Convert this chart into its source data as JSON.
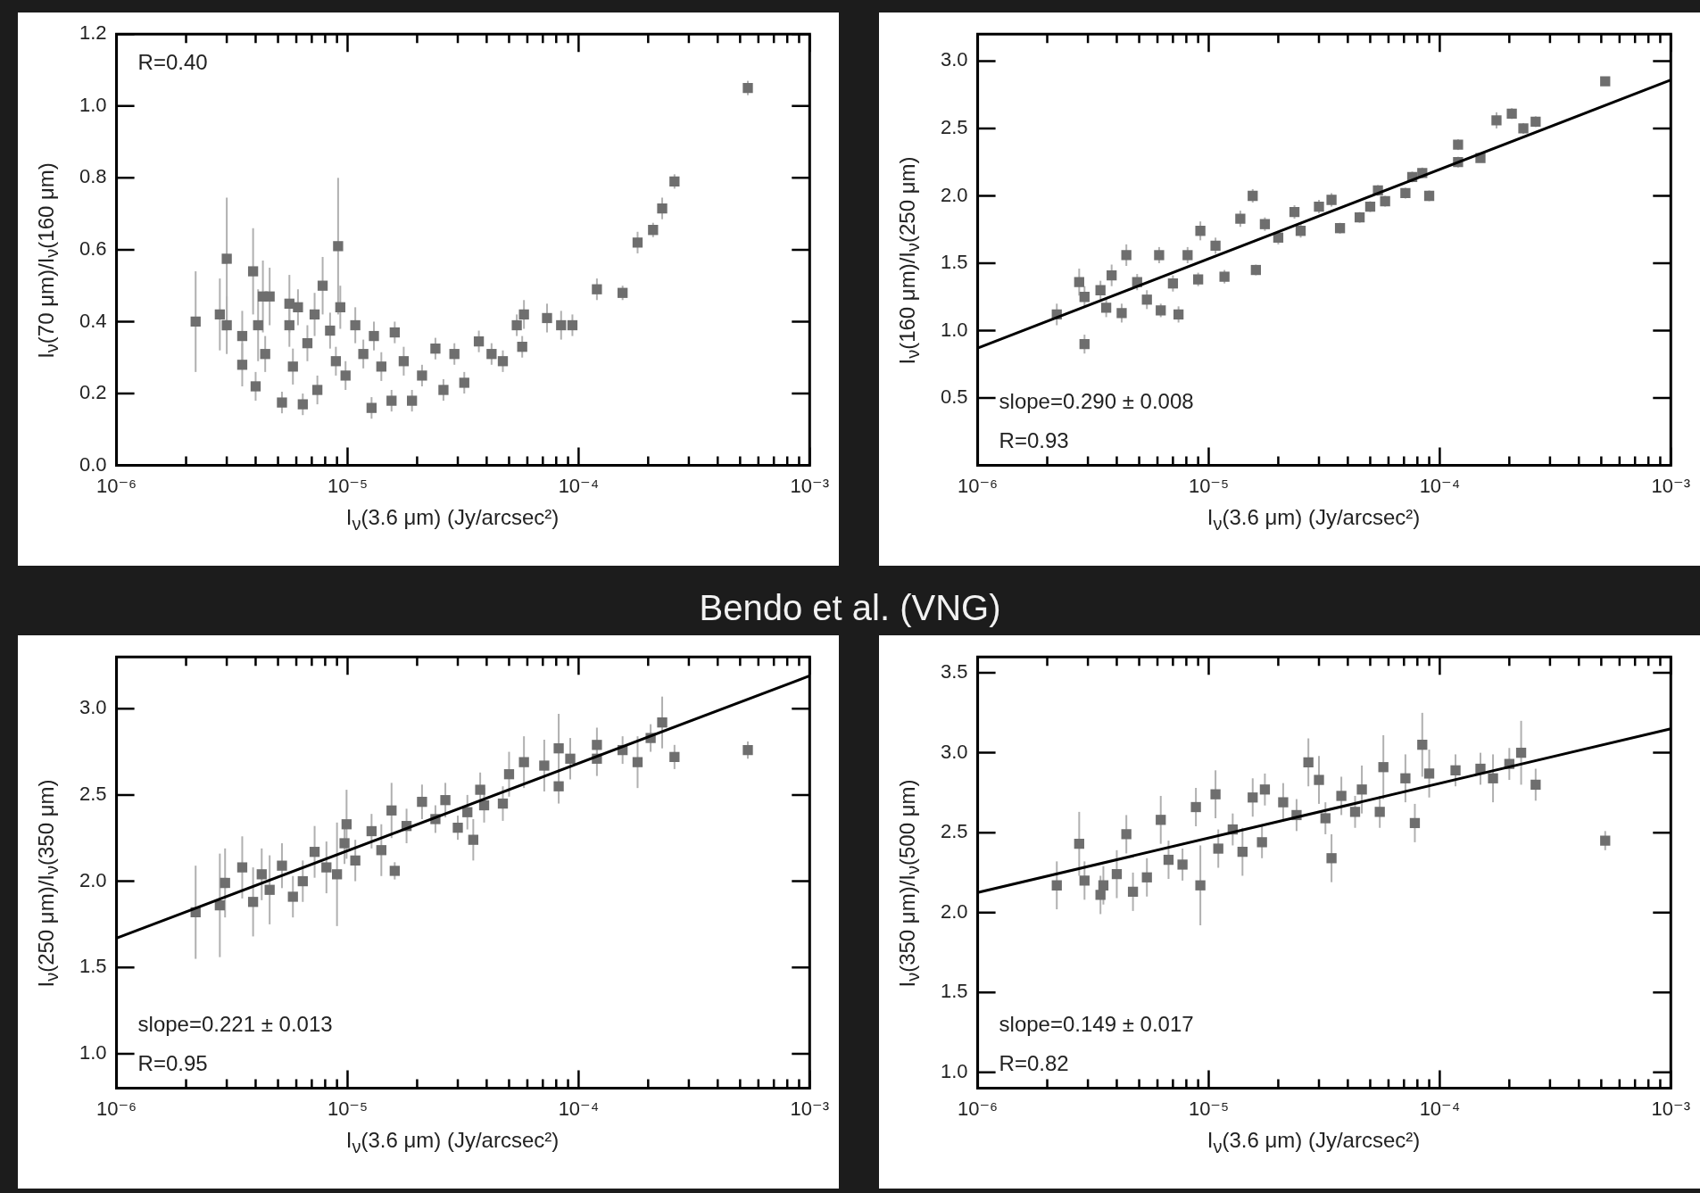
{
  "chart_data": [
    {
      "type": "scatter",
      "log": "x",
      "marker": "square",
      "xlim": [
        1e-06,
        0.001
      ],
      "ylim": [
        0,
        1.2
      ],
      "xlabel": "I$_{ν}$(3.6 μm) (Jy/arcsec²)",
      "ylabel": "I$_{ν}$(70 μm)/I$_{ν}$(160 μm)",
      "xticks": [
        {
          "value": 1e-06,
          "label": "10⁻⁶"
        },
        {
          "value": 2e-06,
          "label": null
        },
        {
          "value": 3e-06,
          "label": null
        },
        {
          "value": 4e-06,
          "label": null
        },
        {
          "value": 5e-06,
          "label": null
        },
        {
          "value": 6e-06,
          "label": null
        },
        {
          "value": 7e-06,
          "label": null
        },
        {
          "value": 8e-06,
          "label": null
        },
        {
          "value": 9e-06,
          "label": null
        },
        {
          "value": 1e-05,
          "label": "10⁻⁵"
        },
        {
          "value": 2e-05,
          "label": null
        },
        {
          "value": 3e-05,
          "label": null
        },
        {
          "value": 4e-05,
          "label": null
        },
        {
          "value": 5e-05,
          "label": null
        },
        {
          "value": 6e-05,
          "label": null
        },
        {
          "value": 7e-05,
          "label": null
        },
        {
          "value": 8e-05,
          "label": null
        },
        {
          "value": 9e-05,
          "label": null
        },
        {
          "value": 0.0001,
          "label": "10⁻⁴"
        },
        {
          "value": 0.0002,
          "label": null
        },
        {
          "value": 0.0003,
          "label": null
        },
        {
          "value": 0.0004,
          "label": null
        },
        {
          "value": 0.0005,
          "label": null
        },
        {
          "value": 0.0006,
          "label": null
        },
        {
          "value": 0.0007,
          "label": null
        },
        {
          "value": 0.0008,
          "label": null
        },
        {
          "value": 0.0009,
          "label": null
        },
        {
          "value": 0.001,
          "label": "10⁻³"
        }
      ],
      "yticks": [
        {
          "value": 0,
          "label": "0.0"
        },
        {
          "value": 0.2,
          "label": "0.2"
        },
        {
          "value": 0.4,
          "label": "0.4"
        },
        {
          "value": 0.6,
          "label": "0.6"
        },
        {
          "value": 0.8,
          "label": "0.8"
        },
        {
          "value": 1,
          "label": "1.0"
        },
        {
          "value": 1.2,
          "label": "1.2"
        }
      ],
      "annotations": [
        "R=0.40"
      ],
      "series": [
        {
          "type": "scatter",
          "color": "#6e6e6e",
          "x": [
            2.2e-06,
            2.8e-06,
            3e-06,
            3e-06,
            3.5e-06,
            3.5e-06,
            3.9e-06,
            4.1e-06,
            4.3e-06,
            4.6e-06,
            4e-06,
            4.4e-06,
            5.2e-06,
            5.6e-06,
            5.6e-06,
            5.8e-06,
            6.1e-06,
            6.4e-06,
            7.2e-06,
            6.7e-06,
            7.4e-06,
            7.8e-06,
            8.4e-06,
            9.1e-06,
            9.3e-06,
            8.9e-06,
            9.8e-06,
            1.08e-05,
            1.17e-05,
            1.27e-05,
            1.3e-05,
            1.4e-05,
            1.55e-05,
            1.6e-05,
            1.75e-05,
            1.9e-05,
            2.1e-05,
            2.4e-05,
            2.6e-05,
            2.9e-05,
            3.2e-05,
            3.7e-05,
            4.2e-05,
            4.7e-05,
            5.4e-05,
            5.8e-05,
            5.7e-05,
            7.3e-05,
            8.4e-05,
            9.4e-05,
            0.00012,
            0.000155,
            0.00018,
            0.00021,
            0.00023,
            0.00026,
            0.00054
          ],
          "values": [
            0.4,
            0.42,
            0.575,
            0.39,
            0.36,
            0.28,
            0.54,
            0.39,
            0.47,
            0.47,
            0.22,
            0.31,
            0.175,
            0.45,
            0.39,
            0.275,
            0.44,
            0.17,
            0.42,
            0.34,
            0.21,
            0.5,
            0.375,
            0.61,
            0.44,
            0.29,
            0.25,
            0.39,
            0.31,
            0.16,
            0.36,
            0.275,
            0.18,
            0.37,
            0.29,
            0.18,
            0.25,
            0.325,
            0.21,
            0.31,
            0.23,
            0.345,
            0.31,
            0.29,
            0.39,
            0.42,
            0.33,
            0.41,
            0.39,
            0.39,
            0.49,
            0.48,
            0.62,
            0.655,
            0.715,
            0.79,
            1.05
          ],
          "errors": [
            0.14,
            0.1,
            0.17,
            0.08,
            0.07,
            0.06,
            0.12,
            0.1,
            0.1,
            0.08,
            0.04,
            0.05,
            0.03,
            0.08,
            0.06,
            0.05,
            0.05,
            0.03,
            0.06,
            0.05,
            0.04,
            0.08,
            0.05,
            0.19,
            0.06,
            0.04,
            0.04,
            0.05,
            0.04,
            0.03,
            0.04,
            0.04,
            0.03,
            0.03,
            0.04,
            0.03,
            0.03,
            0.03,
            0.03,
            0.03,
            0.03,
            0.03,
            0.03,
            0.03,
            0.03,
            0.04,
            0.03,
            0.04,
            0.04,
            0.03,
            0.03,
            0.02,
            0.03,
            0.02,
            0.03,
            0.02,
            0.02
          ]
        }
      ]
    },
    {
      "type": "scatter",
      "log": "x",
      "marker": "square",
      "xlim": [
        1e-06,
        0.001
      ],
      "ylim": [
        0,
        3.2
      ],
      "xlabel": "I$_{ν}$(3.6 μm) (Jy/arcsec²)",
      "ylabel": "I$_{ν}$(160 μm)/I$_{ν}$(250 μm)",
      "xticks": [
        {
          "value": 1e-06,
          "label": "10⁻⁶"
        },
        {
          "value": 2e-06,
          "label": null
        },
        {
          "value": 3e-06,
          "label": null
        },
        {
          "value": 4e-06,
          "label": null
        },
        {
          "value": 5e-06,
          "label": null
        },
        {
          "value": 6e-06,
          "label": null
        },
        {
          "value": 7e-06,
          "label": null
        },
        {
          "value": 8e-06,
          "label": null
        },
        {
          "value": 9e-06,
          "label": null
        },
        {
          "value": 1e-05,
          "label": "10⁻⁵"
        },
        {
          "value": 2e-05,
          "label": null
        },
        {
          "value": 3e-05,
          "label": null
        },
        {
          "value": 4e-05,
          "label": null
        },
        {
          "value": 5e-05,
          "label": null
        },
        {
          "value": 6e-05,
          "label": null
        },
        {
          "value": 7e-05,
          "label": null
        },
        {
          "value": 8e-05,
          "label": null
        },
        {
          "value": 9e-05,
          "label": null
        },
        {
          "value": 0.0001,
          "label": "10⁻⁴"
        },
        {
          "value": 0.0002,
          "label": null
        },
        {
          "value": 0.0003,
          "label": null
        },
        {
          "value": 0.0004,
          "label": null
        },
        {
          "value": 0.0005,
          "label": null
        },
        {
          "value": 0.0006,
          "label": null
        },
        {
          "value": 0.0007,
          "label": null
        },
        {
          "value": 0.0008,
          "label": null
        },
        {
          "value": 0.0009,
          "label": null
        },
        {
          "value": 0.001,
          "label": "10⁻³"
        }
      ],
      "yticks": [
        {
          "value": 0.5,
          "label": "0.5"
        },
        {
          "value": 1,
          "label": "1.0"
        },
        {
          "value": 1.5,
          "label": "1.5"
        },
        {
          "value": 2,
          "label": "2.0"
        },
        {
          "value": 2.5,
          "label": "2.5"
        },
        {
          "value": 3,
          "label": "3.0"
        }
      ],
      "annotations": [
        "slope=0.290 ± 0.008",
        "R=0.93"
      ],
      "series": [
        {
          "type": "scatter",
          "color": "#6e6e6e",
          "x": [
            2.2e-06,
            2.75e-06,
            2.9e-06,
            2.9e-06,
            3.4e-06,
            3.6e-06,
            3.8e-06,
            4.2e-06,
            4.4e-06,
            4.9e-06,
            5.4e-06,
            6.1e-06,
            6.2e-06,
            7e-06,
            7.4e-06,
            8.1e-06,
            9.2e-06,
            9e-06,
            1.07e-05,
            1.17e-05,
            1.37e-05,
            1.55e-05,
            1.6e-05,
            1.75e-05,
            2e-05,
            2.35e-05,
            2.5e-05,
            3e-05,
            3.4e-05,
            3.7e-05,
            4.5e-05,
            5e-05,
            5.4e-05,
            5.8e-05,
            7.1e-05,
            7.6e-05,
            8.4e-05,
            9e-05,
            0.00012,
            0.00012,
            0.00015,
            0.000176,
            0.000205,
            0.00023,
            0.00026,
            0.00052
          ],
          "values": [
            1.12,
            1.36,
            0.9,
            1.25,
            1.3,
            1.17,
            1.41,
            1.13,
            1.56,
            1.36,
            1.23,
            1.56,
            1.15,
            1.35,
            1.12,
            1.56,
            1.74,
            1.38,
            1.63,
            1.4,
            1.83,
            2.0,
            1.45,
            1.79,
            1.69,
            1.88,
            1.74,
            1.92,
            1.97,
            1.76,
            1.84,
            1.92,
            2.04,
            1.96,
            2.02,
            2.14,
            2.17,
            2.0,
            2.38,
            2.25,
            2.28,
            2.56,
            2.61,
            2.5,
            2.55,
            2.85
          ],
          "errors": [
            0.08,
            0.1,
            0.07,
            0.08,
            0.07,
            0.07,
            0.08,
            0.07,
            0.08,
            0.06,
            0.07,
            0.06,
            0.05,
            0.06,
            0.06,
            0.06,
            0.07,
            0.05,
            0.06,
            0.05,
            0.06,
            0.05,
            0.04,
            0.05,
            0.05,
            0.05,
            0.05,
            0.05,
            0.05,
            0.04,
            0.04,
            0.04,
            0.04,
            0.04,
            0.04,
            0.04,
            0.04,
            0.04,
            0.04,
            0.04,
            0.03,
            0.06,
            0.04,
            0.04,
            0.04,
            0.03
          ]
        },
        {
          "type": "line",
          "marker": "none",
          "color": "#000000",
          "x": [
            1e-06,
            0.001
          ],
          "values": [
            0.87,
            2.86
          ]
        }
      ]
    },
    {
      "type": "other",
      "title": "Bendo et al. (VNG)"
    },
    {
      "type": "scatter",
      "log": "x",
      "marker": "square",
      "xlim": [
        1e-06,
        0.001
      ],
      "ylim": [
        0.8,
        3.3
      ],
      "xlabel": "I$_{ν}$(3.6 μm) (Jy/arcsec²)",
      "ylabel": "I$_{ν}$(250 μm)/I$_{ν}$(350 μm)",
      "xticks": [
        {
          "value": 1e-06,
          "label": "10⁻⁶"
        },
        {
          "value": 2e-06,
          "label": null
        },
        {
          "value": 3e-06,
          "label": null
        },
        {
          "value": 4e-06,
          "label": null
        },
        {
          "value": 5e-06,
          "label": null
        },
        {
          "value": 6e-06,
          "label": null
        },
        {
          "value": 7e-06,
          "label": null
        },
        {
          "value": 8e-06,
          "label": null
        },
        {
          "value": 9e-06,
          "label": null
        },
        {
          "value": 1e-05,
          "label": "10⁻⁵"
        },
        {
          "value": 2e-05,
          "label": null
        },
        {
          "value": 3e-05,
          "label": null
        },
        {
          "value": 4e-05,
          "label": null
        },
        {
          "value": 5e-05,
          "label": null
        },
        {
          "value": 6e-05,
          "label": null
        },
        {
          "value": 7e-05,
          "label": null
        },
        {
          "value": 8e-05,
          "label": null
        },
        {
          "value": 9e-05,
          "label": null
        },
        {
          "value": 0.0001,
          "label": "10⁻⁴"
        },
        {
          "value": 0.0002,
          "label": null
        },
        {
          "value": 0.0003,
          "label": null
        },
        {
          "value": 0.0004,
          "label": null
        },
        {
          "value": 0.0005,
          "label": null
        },
        {
          "value": 0.0006,
          "label": null
        },
        {
          "value": 0.0007,
          "label": null
        },
        {
          "value": 0.0008,
          "label": null
        },
        {
          "value": 0.0009,
          "label": null
        },
        {
          "value": 0.001,
          "label": "10⁻³"
        }
      ],
      "yticks": [
        {
          "value": 1,
          "label": "1.0"
        },
        {
          "value": 1.5,
          "label": "1.5"
        },
        {
          "value": 2,
          "label": "2.0"
        },
        {
          "value": 2.5,
          "label": "2.5"
        },
        {
          "value": 3,
          "label": "3.0"
        }
      ],
      "annotations": [
        "slope=0.221 ± 0.013",
        "R=0.95"
      ],
      "series": [
        {
          "type": "scatter",
          "color": "#6e6e6e",
          "x": [
            2.2e-06,
            2.8e-06,
            2.95e-06,
            3.5e-06,
            3.9e-06,
            4.25e-06,
            4.6e-06,
            5.2e-06,
            5.8e-06,
            6.4e-06,
            7.2e-06,
            8.1e-06,
            9e-06,
            9.9e-06,
            9.7e-06,
            1.08e-05,
            1.27e-05,
            1.4e-05,
            1.55e-05,
            1.6e-05,
            1.8e-05,
            2.1e-05,
            2.4e-05,
            2.65e-05,
            3e-05,
            3.5e-05,
            3.3e-05,
            3.9e-05,
            3.75e-05,
            4.7e-05,
            5e-05,
            5.8e-05,
            7.1e-05,
            8.2e-05,
            8.2e-05,
            9.2e-05,
            0.00012,
            0.00012,
            0.000155,
            0.00018,
            0.000205,
            0.00023,
            0.00026,
            0.00054
          ],
          "values": [
            1.82,
            1.86,
            1.99,
            2.08,
            1.88,
            2.04,
            1.95,
            2.09,
            1.91,
            2.0,
            2.17,
            2.08,
            2.04,
            2.33,
            2.22,
            2.12,
            2.29,
            2.18,
            2.41,
            2.06,
            2.32,
            2.46,
            2.36,
            2.47,
            2.31,
            2.24,
            2.4,
            2.44,
            2.53,
            2.45,
            2.62,
            2.69,
            2.67,
            2.77,
            2.55,
            2.71,
            2.79,
            2.71,
            2.76,
            2.69,
            2.83,
            2.92,
            2.72,
            2.76
          ],
          "errors": [
            0.27,
            0.3,
            0.2,
            0.18,
            0.2,
            0.15,
            0.2,
            0.13,
            0.12,
            0.12,
            0.15,
            0.15,
            0.3,
            0.2,
            0.12,
            0.12,
            0.1,
            0.15,
            0.16,
            0.05,
            0.1,
            0.1,
            0.08,
            0.1,
            0.07,
            0.12,
            0.1,
            0.1,
            0.1,
            0.1,
            0.13,
            0.15,
            0.15,
            0.2,
            0.1,
            0.12,
            0.1,
            0.1,
            0.08,
            0.15,
            0.08,
            0.15,
            0.07,
            0.05
          ]
        },
        {
          "type": "line",
          "marker": "none",
          "color": "#000000",
          "x": [
            1e-06,
            0.001
          ],
          "values": [
            1.67,
            3.19
          ]
        }
      ]
    },
    {
      "type": "scatter",
      "log": "x",
      "marker": "square",
      "xlim": [
        1e-06,
        0.001
      ],
      "ylim": [
        0.9,
        3.6
      ],
      "xlabel": "I$_{ν}$(3.6 μm) (Jy/arcsec²)",
      "ylabel": "I$_{ν}$(350 μm)/I$_{ν}$(500 μm)",
      "xticks": [
        {
          "value": 1e-06,
          "label": "10⁻⁶"
        },
        {
          "value": 2e-06,
          "label": null
        },
        {
          "value": 3e-06,
          "label": null
        },
        {
          "value": 4e-06,
          "label": null
        },
        {
          "value": 5e-06,
          "label": null
        },
        {
          "value": 6e-06,
          "label": null
        },
        {
          "value": 7e-06,
          "label": null
        },
        {
          "value": 8e-06,
          "label": null
        },
        {
          "value": 9e-06,
          "label": null
        },
        {
          "value": 1e-05,
          "label": "10⁻⁵"
        },
        {
          "value": 2e-05,
          "label": null
        },
        {
          "value": 3e-05,
          "label": null
        },
        {
          "value": 4e-05,
          "label": null
        },
        {
          "value": 5e-05,
          "label": null
        },
        {
          "value": 6e-05,
          "label": null
        },
        {
          "value": 7e-05,
          "label": null
        },
        {
          "value": 8e-05,
          "label": null
        },
        {
          "value": 9e-05,
          "label": null
        },
        {
          "value": 0.0001,
          "label": "10⁻⁴"
        },
        {
          "value": 0.0002,
          "label": null
        },
        {
          "value": 0.0003,
          "label": null
        },
        {
          "value": 0.0004,
          "label": null
        },
        {
          "value": 0.0005,
          "label": null
        },
        {
          "value": 0.0006,
          "label": null
        },
        {
          "value": 0.0007,
          "label": null
        },
        {
          "value": 0.0008,
          "label": null
        },
        {
          "value": 0.0009,
          "label": null
        },
        {
          "value": 0.001,
          "label": "10⁻³"
        }
      ],
      "yticks": [
        {
          "value": 1,
          "label": "1.0"
        },
        {
          "value": 1.5,
          "label": "1.5"
        },
        {
          "value": 2,
          "label": "2.0"
        },
        {
          "value": 2.5,
          "label": "2.5"
        },
        {
          "value": 3,
          "label": "3.0"
        },
        {
          "value": 3.5,
          "label": "3.5"
        }
      ],
      "annotations": [
        "slope=0.149 ± 0.017",
        "R=0.82"
      ],
      "series": [
        {
          "type": "scatter",
          "color": "#6e6e6e",
          "x": [
            2.2e-06,
            2.75e-06,
            2.9e-06,
            3.4e-06,
            3.5e-06,
            4e-06,
            4.4e-06,
            4.7e-06,
            5.4e-06,
            6.2e-06,
            6.7e-06,
            7.7e-06,
            8.8e-06,
            9.2e-06,
            1.07e-05,
            1.1e-05,
            1.27e-05,
            1.4e-05,
            1.55e-05,
            1.75e-05,
            1.7e-05,
            2.1e-05,
            2.4e-05,
            2.7e-05,
            3e-05,
            3.2e-05,
            3.4e-05,
            3.75e-05,
            4.3e-05,
            4.6e-05,
            5.5e-05,
            5.7e-05,
            7.1e-05,
            7.8e-05,
            8.4e-05,
            9e-05,
            0.000117,
            0.00015,
            0.00017,
            0.0002,
            0.000225,
            0.00026,
            0.00052
          ],
          "values": [
            2.17,
            2.43,
            2.2,
            2.11,
            2.17,
            2.24,
            2.49,
            2.13,
            2.22,
            2.58,
            2.33,
            2.3,
            2.66,
            2.17,
            2.74,
            2.4,
            2.52,
            2.38,
            2.72,
            2.77,
            2.44,
            2.69,
            2.61,
            2.94,
            2.83,
            2.59,
            2.34,
            2.73,
            2.63,
            2.77,
            2.63,
            2.91,
            2.84,
            2.56,
            3.05,
            2.87,
            2.89,
            2.9,
            2.84,
            2.93,
            3.0,
            2.8,
            2.45
          ],
          "errors": [
            0.15,
            0.2,
            0.12,
            0.12,
            0.12,
            0.15,
            0.12,
            0.12,
            0.12,
            0.15,
            0.12,
            0.1,
            0.12,
            0.25,
            0.15,
            0.12,
            0.1,
            0.15,
            0.12,
            0.1,
            0.1,
            0.12,
            0.1,
            0.15,
            0.15,
            0.1,
            0.15,
            0.12,
            0.1,
            0.15,
            0.1,
            0.2,
            0.15,
            0.12,
            0.2,
            0.15,
            0.1,
            0.1,
            0.15,
            0.1,
            0.2,
            0.1,
            0.06
          ]
        },
        {
          "type": "line",
          "marker": "none",
          "color": "#000000",
          "x": [
            1e-06,
            0.001
          ],
          "values": [
            2.125,
            3.15
          ]
        }
      ]
    }
  ]
}
